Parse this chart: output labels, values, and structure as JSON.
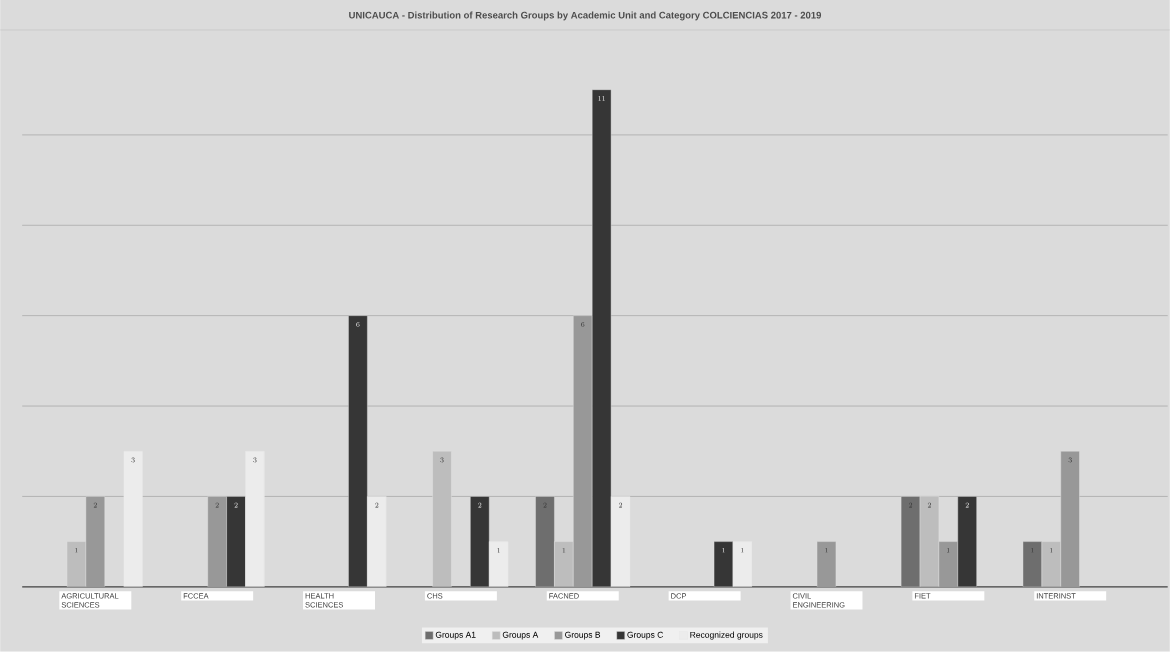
{
  "chart_data": {
    "type": "bar",
    "title": "UNICAUCA - Distribution of Research Groups by Academic Unit and Category COLCIENCIAS 2017 - 2019",
    "categories": [
      "AGRICULTURAL SCIENCES",
      "FCCEA",
      "HEALTH SCIENCES",
      "CHS",
      "FACNED",
      "DCP",
      "CIVIL ENGINEERING",
      "FIET",
      "INTERINST"
    ],
    "series": [
      {
        "name": "Groups A1",
        "color": "#6e6e6e",
        "values": [
          null,
          null,
          null,
          null,
          2,
          null,
          null,
          2,
          1
        ]
      },
      {
        "name": "Groups A",
        "color": "#bdbdbd",
        "values": [
          1,
          null,
          null,
          3,
          1,
          null,
          null,
          2,
          1
        ]
      },
      {
        "name": "Groups B",
        "color": "#989898",
        "values": [
          2,
          2,
          null,
          null,
          6,
          null,
          1,
          1,
          3
        ]
      },
      {
        "name": "Groups C",
        "color": "#363636",
        "values": [
          null,
          2,
          6,
          2,
          11,
          1,
          null,
          2,
          null
        ]
      },
      {
        "name": "Recognized groups",
        "color": "#ececec",
        "values": [
          3,
          3,
          2,
          1,
          2,
          1,
          null,
          null,
          null
        ]
      }
    ],
    "yticks": [
      {
        "value": 2,
        "label": null
      },
      {
        "value": 4,
        "label": null
      },
      {
        "value": 6,
        "label": null
      },
      {
        "value": 8,
        "label": null
      },
      {
        "value": 10,
        "label": null
      }
    ],
    "grid": "y",
    "tick_labels": "x",
    "data_labels": true,
    "legend": "bottom"
  }
}
